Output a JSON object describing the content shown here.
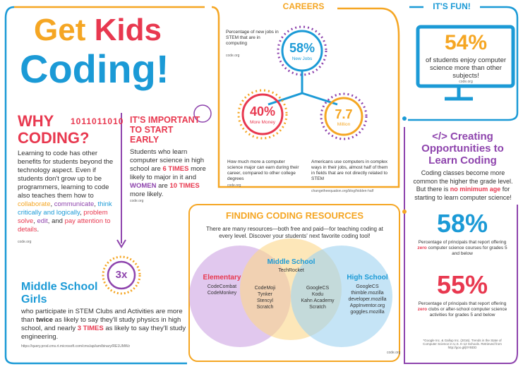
{
  "title": {
    "word1": "Get",
    "word2": "Kids",
    "word3": "Coding!"
  },
  "why_coding": {
    "heading": "WHY CODING?",
    "binary": "1011011010",
    "text": [
      "Learning to code has other benefits for students beyond the technology aspect. Even if students don't grow up to be programmers, learning to code also teaches them how to ",
      "collaborate",
      ", ",
      "communicate",
      ", ",
      "think critically and logically",
      ", ",
      "problem solve",
      ", ",
      "edit",
      ", and ",
      "pay attention to details",
      "."
    ],
    "source": "code.org"
  },
  "start_early": {
    "heading": "IT'S IMPORTANT TO START EARLY",
    "text": [
      "Students who learn computer science in high school are ",
      "6 TIMES",
      " more likely to major in it and ",
      "WOMEN",
      " are ",
      "10 TIMES",
      " more likely."
    ],
    "source": "code.org"
  },
  "girls": {
    "badge": "3x",
    "heading": "Middle School Girls",
    "text": [
      "who participate in STEM Clubs and Activities are more than ",
      "twice",
      " as likely to say they'll study physics in high school, and nearly ",
      "3 TIMES",
      " as likely to say they'll study engineering."
    ],
    "source": "https://query.prod.cms.rt.microsoft.com/cms/api/am/binary/RE1UMWz"
  },
  "careers": {
    "label": "CAREERS",
    "jobs": {
      "value": "58%",
      "label": "New Jobs",
      "caption": "Percentage of new jobs in STEM that are in computing",
      "source": "code.org"
    },
    "money": {
      "value": "40%",
      "label": "More Money",
      "caption": "How much more a computer science major can earn during their career, compared to other college degrees",
      "source": "code.org"
    },
    "million": {
      "value": "7.7",
      "label": "Million",
      "caption": "Americans use computers in complex ways in their jobs, almost half of them in fields that are not directly related to STEM",
      "source": "changetheequation.org/blog/hidden-half"
    }
  },
  "fun": {
    "label": "IT'S FUN!",
    "value": "54%",
    "caption": "of students enjoy computer science more than other subjects!",
    "source": "code.org"
  },
  "opportunities": {
    "heading": "</> Creating Opportunities to Learn Coding",
    "text": [
      "Coding classes become more common the higher the grade level. But there is ",
      "no minimum age",
      " for starting to learn computer science!"
    ],
    "stats": [
      {
        "value": "58%",
        "text": [
          "Percentage of principals that report offering ",
          "zero",
          " computer science courses for grades 5 and below"
        ]
      },
      {
        "value": "55%",
        "text": [
          "Percentage of principals that report offering ",
          "zero",
          " clubs or after-school computer science activities for grades 5 and below"
        ]
      }
    ],
    "footnote": "*Google Inc. & Gallup Inc. (2016). Trends in the State of Computer Science in U.S. K-12 Schools. Retrieved from http://goo.gl/j0YBDD"
  },
  "resources": {
    "heading": "FINDING CODING RESOURCES",
    "intro": "There are many resources—both free and paid—for teaching coding at every level. Discover your students' next favorite coding tool!",
    "elementary": {
      "title": "Elementary",
      "items": [
        "CodeCombat",
        "CodeMonkey"
      ]
    },
    "middle": {
      "title": "Middle School",
      "items": [
        "TechRocket"
      ]
    },
    "high": {
      "title": "High School",
      "items": [
        "GoogleCS",
        "thimble.mozilla",
        "developer.mozilla",
        "AppInventor.org",
        "goggles.mozilla"
      ]
    },
    "elementary_middle": [
      "CodeMoji",
      "Tynker",
      "Stencyl",
      "Scratch"
    ],
    "middle_high": [
      "GoogleCS",
      "Kodu",
      "Kahn Academy",
      "Scratch"
    ],
    "source": "code.org"
  }
}
